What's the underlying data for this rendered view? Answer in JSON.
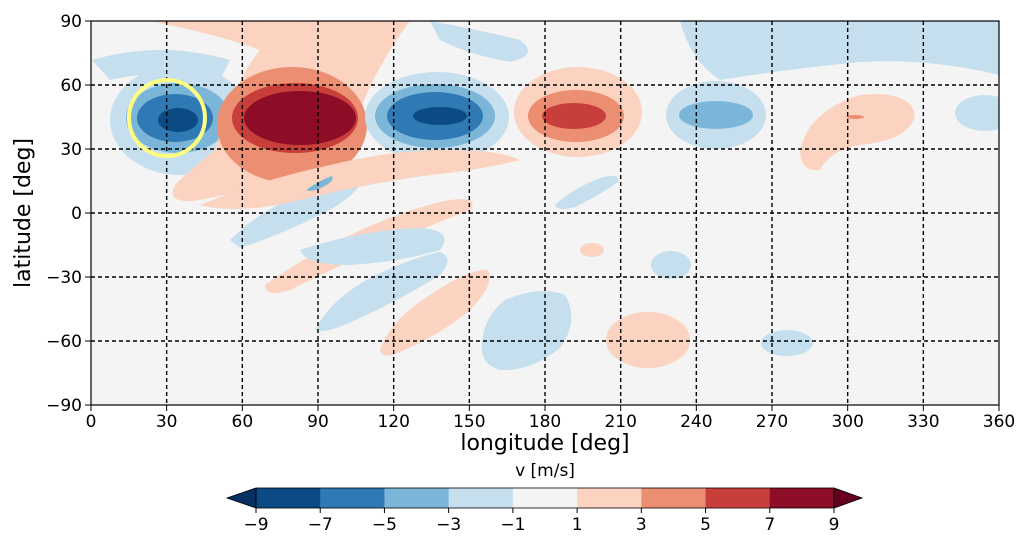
{
  "chart_data": {
    "type": "contourf",
    "xlabel": "longitude [deg]",
    "ylabel": "latitude [deg]",
    "xlim": [
      0,
      360
    ],
    "ylim": [
      -90,
      90
    ],
    "xticks": [
      "0",
      "30",
      "60",
      "90",
      "120",
      "150",
      "180",
      "210",
      "240",
      "270",
      "300",
      "330",
      "360"
    ],
    "yticks": [
      "−90",
      "−60",
      "−30",
      "0",
      "30",
      "60",
      "90"
    ],
    "grid": true,
    "colorbar": {
      "label": "v [m/s]",
      "orientation": "horizontal",
      "extend": "both",
      "levels": [
        -9,
        -7,
        -5,
        -3,
        -1,
        1,
        3,
        5,
        7,
        9
      ],
      "ticks": [
        "−9",
        "−7",
        "−5",
        "−3",
        "−1",
        "1",
        "3",
        "5",
        "7",
        "9"
      ],
      "colors": [
        "#0b4a85",
        "#2f79b5",
        "#7bb6d9",
        "#c6dfee",
        "#f4f4f4",
        "#fbd3c0",
        "#eb8e71",
        "#c83e3a",
        "#8c0d25"
      ],
      "under_color": "#053061",
      "over_color": "#67001f"
    },
    "features": [
      {
        "kind": "trough",
        "lon": 35,
        "lat": 45,
        "peak": -9
      },
      {
        "kind": "ridge",
        "lon": 80,
        "lat": 45,
        "peak": 9
      },
      {
        "kind": "trough",
        "lon": 137,
        "lat": 46,
        "peak": -8
      },
      {
        "kind": "ridge",
        "lon": 195,
        "lat": 46,
        "peak": 6
      },
      {
        "kind": "trough",
        "lon": 250,
        "lat": 46,
        "peak": -4
      },
      {
        "kind": "ridge",
        "lon": 300,
        "lat": 45,
        "peak": 2
      }
    ],
    "annotation": {
      "shape": "circle",
      "color": "#ffff80",
      "center_lon": 30,
      "center_lat": 45
    }
  }
}
